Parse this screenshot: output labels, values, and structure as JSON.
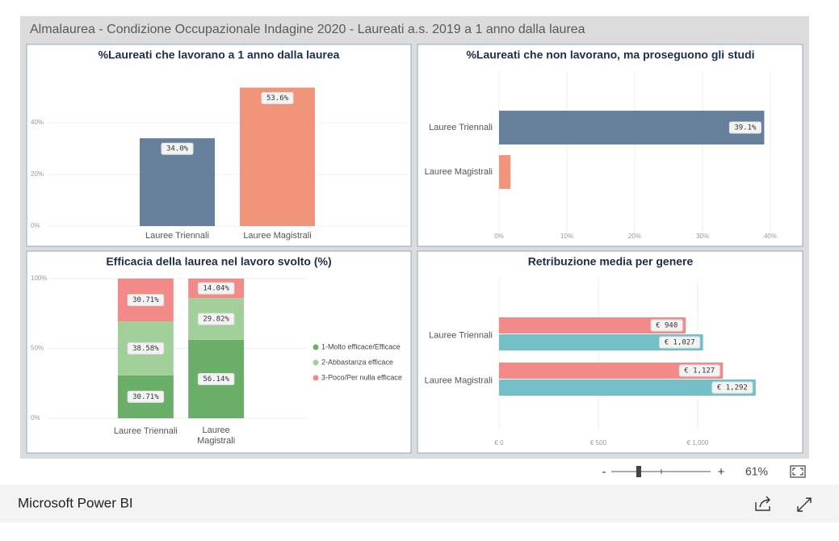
{
  "header": {
    "title": "Almalaurea - Condizione Occupazionale Indagine 2020 - Laureati a.s. 2019 a 1 anno dalla laurea"
  },
  "chart_data": [
    {
      "type": "bar",
      "title": "%Laureati che lavorano a 1 anno dalla laurea",
      "categories": [
        "Lauree Triennali",
        "Lauree Magistrali"
      ],
      "values": [
        34.0,
        53.6
      ],
      "value_labels": [
        "34.0%",
        "53.6%"
      ],
      "colors": [
        "#667f9a",
        "#f0957a"
      ],
      "ylim": [
        0,
        55
      ],
      "yticks": [
        {
          "value": 0,
          "label": "0%"
        },
        {
          "value": 20,
          "label": "20%"
        },
        {
          "value": 40,
          "label": "40%"
        }
      ],
      "grid": true
    },
    {
      "type": "barh",
      "title": "%Laureati che non lavorano, ma proseguono gli studi",
      "categories": [
        "Lauree Triennali",
        "Lauree Magistrali"
      ],
      "values": [
        39.1,
        1.7
      ],
      "value_labels": [
        "39.1%",
        null
      ],
      "colors": [
        "#667f9a",
        "#f0957a"
      ],
      "xlim": [
        0,
        40
      ],
      "xticks": [
        {
          "value": 0,
          "label": "0%"
        },
        {
          "value": 10,
          "label": "10%"
        },
        {
          "value": 20,
          "label": "20%"
        },
        {
          "value": 30,
          "label": "30%"
        },
        {
          "value": 40,
          "label": "40%"
        }
      ],
      "grid": true
    },
    {
      "type": "stacked_bar",
      "title": "Efficacia della laurea nel lavoro svolto (%)",
      "categories": [
        "Lauree Triennali",
        "Lauree Magistrali"
      ],
      "series": [
        {
          "name": "1-Molto efficace/Efficace",
          "color": "#6aae6a",
          "values": [
            30.71,
            56.14
          ],
          "value_labels": [
            "30.71%",
            "56.14%"
          ]
        },
        {
          "name": "2-Abbastanza efficace",
          "color": "#a3cf9b",
          "values": [
            38.58,
            29.82
          ],
          "value_labels": [
            "38.58%",
            "29.82%"
          ]
        },
        {
          "name": "3-Poco/Per nulla efficace",
          "color": "#f28a8a",
          "values": [
            30.71,
            14.04
          ],
          "value_labels": [
            "30.71%",
            "14.04%"
          ]
        }
      ],
      "ylim": [
        0,
        100
      ],
      "yticks": [
        {
          "value": 0,
          "label": "0%"
        },
        {
          "value": 50,
          "label": "50%"
        },
        {
          "value": 100,
          "label": "100%"
        }
      ],
      "grid": true,
      "legend": "right"
    },
    {
      "type": "grouped_barh",
      "title": "Retribuzione media per genere",
      "categories": [
        "Lauree Triennali",
        "Lauree Magistrali"
      ],
      "series": [
        {
          "color": "#f28a8a",
          "values": [
            940,
            1127
          ],
          "value_labels": [
            "€ 940",
            "€ 1,127"
          ]
        },
        {
          "color": "#74c0c8",
          "values": [
            1027,
            1292
          ],
          "value_labels": [
            "€ 1,027",
            "€ 1,292"
          ]
        }
      ],
      "xlim": [
        0,
        1500
      ],
      "xticks": [
        {
          "value": 0,
          "label": "€ 0"
        },
        {
          "value": 500,
          "label": "€ 500"
        },
        {
          "value": 1000,
          "label": "€ 1,000"
        }
      ],
      "grid": true
    }
  ],
  "zoom": {
    "minus": "-",
    "plus": "+",
    "level": "61%"
  },
  "footer": {
    "brand": "Microsoft Power BI"
  }
}
